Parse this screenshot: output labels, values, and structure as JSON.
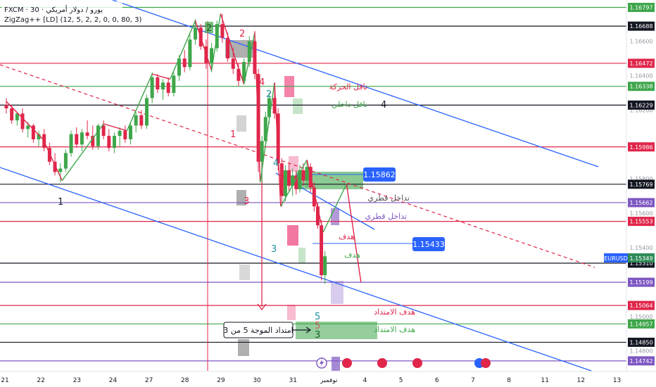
{
  "header": {
    "symbol_line": "FXCM · 30 · يورو / دولار أمريكي",
    "indicator_line": "ZigZag++ [LD] (12, 5, 2, 2, 0, 0, 80, 3)",
    "currency": "USD"
  },
  "colors": {
    "red": "#e0264a",
    "green": "#3ea64a",
    "black": "#131722",
    "purple": "#7e57c2",
    "blue": "#2962ff",
    "pink": "#e91e63",
    "candle_up": "#3ea64a",
    "candle_down": "#e0264a",
    "gray_box": "#9e9e9e"
  },
  "chart_data": {
    "type": "candlestick",
    "symbol": "EURUSD",
    "timeframe": "30",
    "y_range": [
      1.1468,
      1.1684
    ],
    "x_ticks": [
      "21",
      "22",
      "23",
      "24",
      "27",
      "28",
      "29",
      "30",
      "31",
      "نوفمبر",
      "4",
      "5",
      "6",
      "7",
      "8",
      "11",
      "12",
      "13"
    ],
    "axis_ticks": [
      "1.16600",
      "1.16400",
      "1.16200",
      "1.15800",
      "1.15600",
      "1.15400",
      "1.15200",
      "1.15000",
      "1.14800"
    ],
    "price_levels": [
      {
        "value": "1.16797",
        "color": "green"
      },
      {
        "value": "1.16688",
        "color": "black"
      },
      {
        "value": "1.16472",
        "color": "red"
      },
      {
        "value": "1.16338",
        "color": "green"
      },
      {
        "value": "1.16229",
        "color": "black"
      },
      {
        "value": "1.15986",
        "color": "red"
      },
      {
        "value": "1.15769",
        "color": "black"
      },
      {
        "value": "1.15662",
        "color": "purple"
      },
      {
        "value": "1.15553",
        "color": "red"
      },
      {
        "value": "1.15310",
        "color": "black"
      },
      {
        "value": "1.15199",
        "color": "purple"
      },
      {
        "value": "1.15064",
        "color": "red"
      },
      {
        "value": "1.14957",
        "color": "green"
      },
      {
        "value": "1.14850",
        "color": "black"
      },
      {
        "value": "1.14742",
        "color": "purple"
      }
    ],
    "current_price": {
      "symbol": "EURUSD",
      "value": "1.15349"
    },
    "callouts": [
      {
        "value": "1.15862"
      },
      {
        "value": "1.15433"
      }
    ],
    "zigzag": [
      {
        "day": 0.0,
        "price": 1.1625
      },
      {
        "day": 1.02,
        "price": 1.1603
      },
      {
        "day": 1.55,
        "price": 1.1579
      },
      {
        "day": 2.7,
        "price": 1.1612
      },
      {
        "day": 3.35,
        "price": 1.1608
      },
      {
        "day": 4.05,
        "price": 1.1641
      },
      {
        "day": 4.55,
        "price": 1.1638
      },
      {
        "day": 5.25,
        "price": 1.1672
      },
      {
        "day": 5.7,
        "price": 1.1643
      },
      {
        "day": 5.95,
        "price": 1.1676
      },
      {
        "day": 6.6,
        "price": 1.1635
      },
      {
        "day": 6.9,
        "price": 1.1665
      },
      {
        "day": 7.05,
        "price": 1.1578
      },
      {
        "day": 7.45,
        "price": 1.1636
      },
      {
        "day": 7.62,
        "price": 1.1564
      },
      {
        "day": 8.35,
        "price": 1.1591
      },
      {
        "day": 8.8,
        "price": 1.1549
      },
      {
        "day": 9.45,
        "price": 1.1577
      },
      {
        "day": 9.85,
        "price": 1.152
      }
    ],
    "candles": [
      {
        "day": 0.0,
        "o": 1.1623,
        "h": 1.1627,
        "l": 1.1618,
        "c": 1.1621
      },
      {
        "day": 0.15,
        "o": 1.1621,
        "h": 1.1623,
        "l": 1.1612,
        "c": 1.1614
      },
      {
        "day": 0.3,
        "o": 1.1614,
        "h": 1.1619,
        "l": 1.1611,
        "c": 1.1618
      },
      {
        "day": 0.45,
        "o": 1.1618,
        "h": 1.1621,
        "l": 1.1607,
        "c": 1.1609
      },
      {
        "day": 0.6,
        "o": 1.1609,
        "h": 1.1613,
        "l": 1.1604,
        "c": 1.1611
      },
      {
        "day": 0.75,
        "o": 1.1611,
        "h": 1.1612,
        "l": 1.1601,
        "c": 1.1603
      },
      {
        "day": 0.9,
        "o": 1.1603,
        "h": 1.1608,
        "l": 1.1599,
        "c": 1.1606
      },
      {
        "day": 1.05,
        "o": 1.1606,
        "h": 1.1609,
        "l": 1.1596,
        "c": 1.1598
      },
      {
        "day": 1.2,
        "o": 1.1598,
        "h": 1.1601,
        "l": 1.1588,
        "c": 1.159
      },
      {
        "day": 1.35,
        "o": 1.159,
        "h": 1.1595,
        "l": 1.1582,
        "c": 1.1584
      },
      {
        "day": 1.5,
        "o": 1.1584,
        "h": 1.1589,
        "l": 1.1578,
        "c": 1.1586
      },
      {
        "day": 1.65,
        "o": 1.1586,
        "h": 1.1597,
        "l": 1.1584,
        "c": 1.1595
      },
      {
        "day": 1.8,
        "o": 1.1595,
        "h": 1.1608,
        "l": 1.1593,
        "c": 1.1606
      },
      {
        "day": 1.95,
        "o": 1.1606,
        "h": 1.161,
        "l": 1.1598,
        "c": 1.16
      },
      {
        "day": 2.1,
        "o": 1.16,
        "h": 1.1609,
        "l": 1.1596,
        "c": 1.1607
      },
      {
        "day": 2.25,
        "o": 1.1607,
        "h": 1.1614,
        "l": 1.1603,
        "c": 1.1605
      },
      {
        "day": 2.4,
        "o": 1.1605,
        "h": 1.1611,
        "l": 1.1597,
        "c": 1.1599
      },
      {
        "day": 2.55,
        "o": 1.1599,
        "h": 1.1612,
        "l": 1.1597,
        "c": 1.1611
      },
      {
        "day": 2.7,
        "o": 1.1611,
        "h": 1.1614,
        "l": 1.1603,
        "c": 1.1605
      },
      {
        "day": 2.85,
        "o": 1.1605,
        "h": 1.1609,
        "l": 1.1596,
        "c": 1.1598
      },
      {
        "day": 3.0,
        "o": 1.1598,
        "h": 1.1607,
        "l": 1.1595,
        "c": 1.1605
      },
      {
        "day": 3.15,
        "o": 1.1605,
        "h": 1.161,
        "l": 1.1599,
        "c": 1.1608
      },
      {
        "day": 3.3,
        "o": 1.1608,
        "h": 1.1611,
        "l": 1.1601,
        "c": 1.1603
      },
      {
        "day": 3.45,
        "o": 1.1603,
        "h": 1.1613,
        "l": 1.16,
        "c": 1.1611
      },
      {
        "day": 3.6,
        "o": 1.1611,
        "h": 1.1619,
        "l": 1.1607,
        "c": 1.1617
      },
      {
        "day": 3.75,
        "o": 1.1617,
        "h": 1.162,
        "l": 1.1609,
        "c": 1.1611
      },
      {
        "day": 3.9,
        "o": 1.1611,
        "h": 1.1629,
        "l": 1.1609,
        "c": 1.1627
      },
      {
        "day": 4.05,
        "o": 1.1627,
        "h": 1.1642,
        "l": 1.1624,
        "c": 1.1639
      },
      {
        "day": 4.2,
        "o": 1.1639,
        "h": 1.1641,
        "l": 1.163,
        "c": 1.1632
      },
      {
        "day": 4.35,
        "o": 1.1632,
        "h": 1.1638,
        "l": 1.1626,
        "c": 1.1636
      },
      {
        "day": 4.5,
        "o": 1.1636,
        "h": 1.1639,
        "l": 1.1628,
        "c": 1.163
      },
      {
        "day": 4.65,
        "o": 1.163,
        "h": 1.1642,
        "l": 1.1628,
        "c": 1.164
      },
      {
        "day": 4.8,
        "o": 1.164,
        "h": 1.1652,
        "l": 1.1637,
        "c": 1.165
      },
      {
        "day": 4.95,
        "o": 1.165,
        "h": 1.1655,
        "l": 1.1642,
        "c": 1.1645
      },
      {
        "day": 5.1,
        "o": 1.1645,
        "h": 1.1664,
        "l": 1.1643,
        "c": 1.1661
      },
      {
        "day": 5.25,
        "o": 1.1661,
        "h": 1.1673,
        "l": 1.1658,
        "c": 1.1668
      },
      {
        "day": 5.4,
        "o": 1.1668,
        "h": 1.167,
        "l": 1.1655,
        "c": 1.1657
      },
      {
        "day": 5.55,
        "o": 1.1657,
        "h": 1.1661,
        "l": 1.1644,
        "c": 1.1647
      },
      {
        "day": 5.7,
        "o": 1.1647,
        "h": 1.1659,
        "l": 1.1642,
        "c": 1.1656
      },
      {
        "day": 5.85,
        "o": 1.1656,
        "h": 1.1672,
        "l": 1.1654,
        "c": 1.167
      },
      {
        "day": 6.0,
        "o": 1.167,
        "h": 1.1676,
        "l": 1.1659,
        "c": 1.1662
      },
      {
        "day": 6.15,
        "o": 1.1662,
        "h": 1.1665,
        "l": 1.1648,
        "c": 1.165
      },
      {
        "day": 6.3,
        "o": 1.165,
        "h": 1.1656,
        "l": 1.1641,
        "c": 1.1644
      },
      {
        "day": 6.45,
        "o": 1.1644,
        "h": 1.1647,
        "l": 1.1634,
        "c": 1.1637
      },
      {
        "day": 6.6,
        "o": 1.1637,
        "h": 1.165,
        "l": 1.1635,
        "c": 1.1648
      },
      {
        "day": 6.75,
        "o": 1.1648,
        "h": 1.1663,
        "l": 1.1645,
        "c": 1.166
      },
      {
        "day": 6.9,
        "o": 1.166,
        "h": 1.1666,
        "l": 1.1638,
        "c": 1.1641
      },
      {
        "day": 7.0,
        "o": 1.1641,
        "h": 1.1644,
        "l": 1.1584,
        "c": 1.159
      },
      {
        "day": 7.1,
        "o": 1.159,
        "h": 1.1605,
        "l": 1.1578,
        "c": 1.1602
      },
      {
        "day": 7.2,
        "o": 1.1602,
        "h": 1.1619,
        "l": 1.1598,
        "c": 1.1616
      },
      {
        "day": 7.3,
        "o": 1.1616,
        "h": 1.163,
        "l": 1.1612,
        "c": 1.1627
      },
      {
        "day": 7.45,
        "o": 1.1627,
        "h": 1.1636,
        "l": 1.1615,
        "c": 1.1618
      },
      {
        "day": 7.55,
        "o": 1.1618,
        "h": 1.1621,
        "l": 1.1585,
        "c": 1.1589
      },
      {
        "day": 7.65,
        "o": 1.1589,
        "h": 1.1592,
        "l": 1.1564,
        "c": 1.157
      },
      {
        "day": 7.75,
        "o": 1.157,
        "h": 1.1588,
        "l": 1.1567,
        "c": 1.1585
      },
      {
        "day": 7.85,
        "o": 1.1585,
        "h": 1.1589,
        "l": 1.1573,
        "c": 1.1576
      },
      {
        "day": 7.95,
        "o": 1.1576,
        "h": 1.1586,
        "l": 1.157,
        "c": 1.1582
      },
      {
        "day": 8.05,
        "o": 1.1582,
        "h": 1.1585,
        "l": 1.1571,
        "c": 1.1574
      },
      {
        "day": 8.15,
        "o": 1.1574,
        "h": 1.1588,
        "l": 1.1572,
        "c": 1.1585
      },
      {
        "day": 8.25,
        "o": 1.1585,
        "h": 1.1589,
        "l": 1.1576,
        "c": 1.1579
      },
      {
        "day": 8.35,
        "o": 1.1579,
        "h": 1.1591,
        "l": 1.1575,
        "c": 1.1587
      },
      {
        "day": 8.45,
        "o": 1.1587,
        "h": 1.1589,
        "l": 1.1572,
        "c": 1.1575
      },
      {
        "day": 8.55,
        "o": 1.1575,
        "h": 1.1578,
        "l": 1.1561,
        "c": 1.1564
      },
      {
        "day": 8.65,
        "o": 1.1564,
        "h": 1.1566,
        "l": 1.1551,
        "c": 1.1553
      },
      {
        "day": 8.75,
        "o": 1.1553,
        "h": 1.1556,
        "l": 1.1521,
        "c": 1.1524
      },
      {
        "day": 8.85,
        "o": 1.1524,
        "h": 1.1538,
        "l": 1.1519,
        "c": 1.1535
      }
    ]
  },
  "annotations": {
    "wave_labels": [
      {
        "text": "1",
        "color": "black"
      },
      {
        "text": "2",
        "color": "green"
      },
      {
        "text": "2",
        "color": "red"
      },
      {
        "text": "1",
        "color": "red"
      },
      {
        "text": "3",
        "color": "red"
      },
      {
        "text": "4",
        "color": "red"
      },
      {
        "text": "2",
        "color": "blue"
      },
      {
        "text": "4",
        "color": "blue"
      },
      {
        "text": "3",
        "color": "blue"
      },
      {
        "text": "4",
        "color": "black"
      },
      {
        "text": "5",
        "color": "blue"
      },
      {
        "text": "5",
        "color": "red"
      },
      {
        "text": "3",
        "color": "green"
      }
    ],
    "notes": [
      {
        "text": "ناقل الحركة",
        "color": "red"
      },
      {
        "text": "ناقل داخلي",
        "color": "green"
      },
      {
        "text": "تداخل قطري",
        "color": "gray"
      },
      {
        "text": "تداخل قطري",
        "color": "purple"
      },
      {
        "text": "هدف",
        "color": "red"
      },
      {
        "text": "هدف",
        "color": "green"
      },
      {
        "text": "هدف الامتداد",
        "color": "red"
      },
      {
        "text": "هدف الامتداد",
        "color": "green"
      }
    ],
    "extension_note": "امتداد الموجة 5 من 3"
  }
}
